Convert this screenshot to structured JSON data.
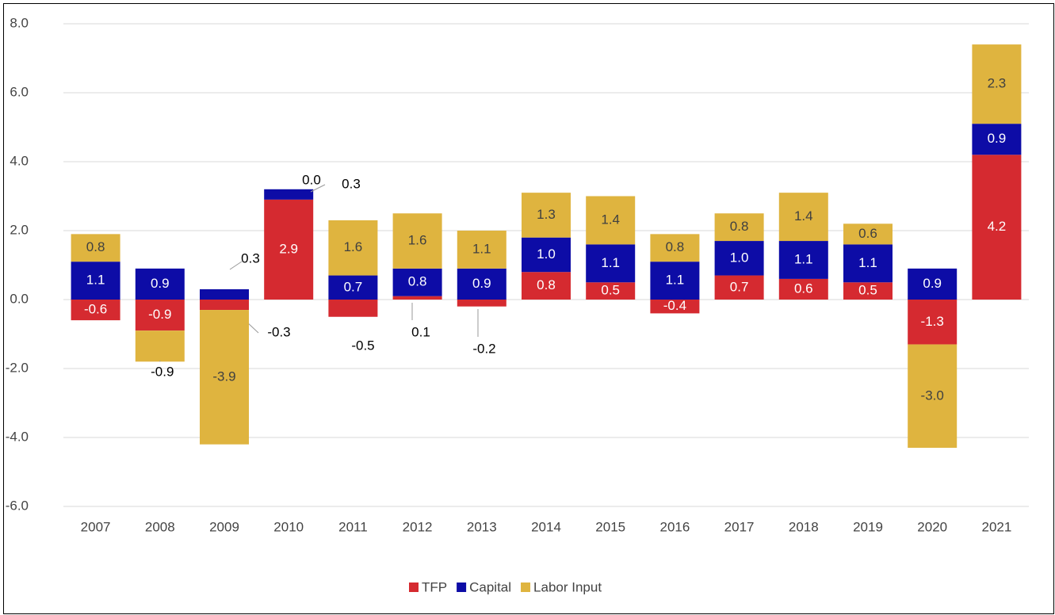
{
  "chart_data": {
    "type": "stacked_bar",
    "categories": [
      "2007",
      "2008",
      "2009",
      "2010",
      "2011",
      "2012",
      "2013",
      "2014",
      "2015",
      "2016",
      "2017",
      "2018",
      "2019",
      "2020",
      "2021"
    ],
    "series": [
      {
        "name": "TFP",
        "color": "#d52a30",
        "values": [
          -0.6,
          -0.9,
          -0.3,
          2.9,
          -0.5,
          0.1,
          -0.2,
          0.8,
          0.5,
          -0.4,
          0.7,
          0.6,
          0.5,
          -1.3,
          4.2
        ],
        "value_labels": [
          "-0.6",
          "-0.9",
          "-0.3",
          "2.9",
          "-0.5",
          "0.1",
          "-0.2",
          "0.8",
          "0.5",
          "-0.4",
          "0.7",
          "0.6",
          "0.5",
          "-1.3",
          "4.2"
        ]
      },
      {
        "name": "Capital",
        "color": "#0d0ca6",
        "values": [
          1.1,
          0.9,
          0.3,
          0.3,
          0.7,
          0.8,
          0.9,
          1.0,
          1.1,
          1.1,
          1.0,
          1.1,
          1.1,
          0.9,
          0.9
        ],
        "value_labels": [
          "1.1",
          "0.9",
          "0.3",
          "0.3",
          "0.7",
          "0.8",
          "0.9",
          "1.0",
          "1.1",
          "1.1",
          "1.0",
          "1.1",
          "1.1",
          "0.9",
          "0.9"
        ]
      },
      {
        "name": "Labor Input",
        "color": "#dfb43f",
        "values": [
          0.8,
          -0.9,
          -3.9,
          0.0,
          1.6,
          1.6,
          1.1,
          1.3,
          1.4,
          0.8,
          0.8,
          1.4,
          0.6,
          -3.0,
          2.3
        ],
        "value_labels": [
          "0.8",
          "-0.9",
          "-3.9",
          "0.0",
          "1.6",
          "1.6",
          "1.1",
          "1.3",
          "1.4",
          "0.8",
          "0.8",
          "1.4",
          "0.6",
          "-3.0",
          "2.3"
        ]
      }
    ],
    "ylim": [
      -6,
      8
    ],
    "yticks": [
      {
        "value": -6,
        "label": "-6.0"
      },
      {
        "value": -4,
        "label": "-4.0"
      },
      {
        "value": -2,
        "label": "-2.0"
      },
      {
        "value": 0,
        "label": "0.0"
      },
      {
        "value": 2,
        "label": "2.0"
      },
      {
        "value": 4,
        "label": "4.0"
      },
      {
        "value": 6,
        "label": "6.0"
      },
      {
        "value": 8,
        "label": "8.0"
      }
    ],
    "grid": true,
    "legend": "bottom"
  }
}
